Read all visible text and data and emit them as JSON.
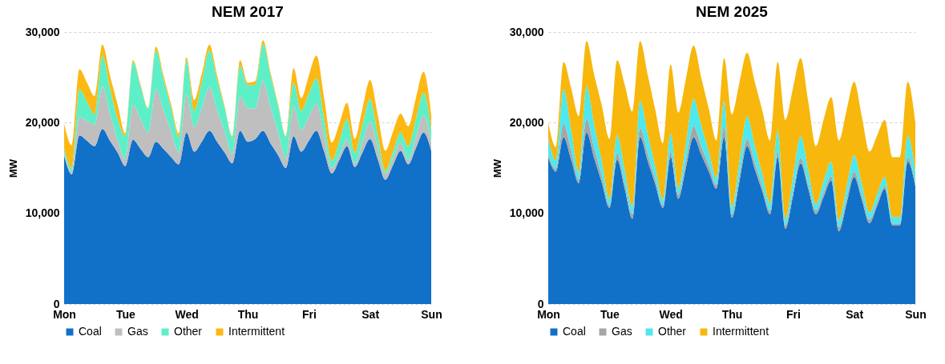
{
  "chart_data": [
    {
      "type": "area",
      "title": "NEM 2017",
      "ylabel": "MW",
      "stacked": true,
      "grid": "y",
      "legend": "bottom",
      "categories": [
        "Mon",
        null,
        null,
        null,
        null,
        null,
        null,
        null,
        "Tue",
        null,
        null,
        null,
        null,
        null,
        null,
        null,
        "Wed",
        null,
        null,
        null,
        null,
        null,
        null,
        null,
        "Thu",
        null,
        null,
        null,
        null,
        null,
        null,
        null,
        "Fri",
        null,
        null,
        null,
        null,
        null,
        null,
        null,
        "Sat",
        null,
        null,
        null,
        null,
        null,
        null,
        null,
        "Sun"
      ],
      "ylim": [
        0,
        30000
      ],
      "yticks": [
        0,
        {
          "value": 10000,
          "label": "10,000"
        },
        {
          "value": 20000,
          "label": "20,000"
        },
        {
          "value": 30000,
          "label": "30,000"
        }
      ],
      "series": [
        {
          "name": "Coal",
          "color": "#1170c8",
          "values": [
            16400,
            14300,
            18600,
            18000,
            17400,
            19300,
            18000,
            16700,
            15200,
            18100,
            17100,
            16200,
            17900,
            17100,
            16200,
            15400,
            18900,
            16800,
            17900,
            19100,
            17900,
            16700,
            15500,
            19100,
            17900,
            18200,
            19100,
            17700,
            16400,
            15000,
            18500,
            16800,
            18000,
            19100,
            16800,
            14400,
            15900,
            17400,
            15100,
            16700,
            18200,
            16000,
            13700,
            15300,
            16900,
            15400,
            17200,
            18900,
            16900
          ]
        },
        {
          "name": "Gas",
          "color": "#bfbfbf",
          "values": [
            300,
            300,
            2000,
            2200,
            2400,
            4700,
            3000,
            1400,
            800,
            3900,
            3300,
            2700,
            5800,
            4300,
            2800,
            1300,
            4300,
            2700,
            3700,
            4800,
            3500,
            2300,
            1000,
            3800,
            3700,
            3400,
            5500,
            4000,
            2500,
            1000,
            3300,
            2400,
            2700,
            3000,
            1800,
            600,
            600,
            700,
            400,
            1100,
            1900,
            1300,
            700,
            800,
            900,
            500,
            1200,
            1900,
            900
          ]
        },
        {
          "name": "Other",
          "color": "#5df0c8",
          "values": [
            500,
            400,
            3100,
            2100,
            1100,
            3400,
            2800,
            2300,
            2500,
            4700,
            3600,
            2600,
            4300,
            3400,
            2600,
            1700,
            3700,
            1800,
            2900,
            4100,
            3400,
            2600,
            1900,
            3400,
            2500,
            2600,
            4100,
            3500,
            2900,
            2400,
            2600,
            2100,
            2500,
            2800,
            1800,
            800,
            1500,
            2300,
            1200,
            1900,
            2500,
            1400,
            300,
            700,
            1100,
            1500,
            2000,
            2500,
            1400
          ]
        },
        {
          "name": "Intermittent",
          "color": "#fdb813",
          "values": [
            2700,
            2500,
            2200,
            2100,
            2000,
            1200,
            1400,
            1600,
            300,
            200,
            200,
            100,
            400,
            400,
            400,
            400,
            300,
            1200,
            900,
            600,
            400,
            200,
            100,
            600,
            300,
            400,
            400,
            300,
            200,
            100,
            1600,
            1400,
            2000,
            2500,
            2300,
            2000,
            1900,
            1800,
            1500,
            1800,
            2100,
            2200,
            2200,
            2200,
            2100,
            2200,
            2300,
            2300,
            1600
          ]
        }
      ]
    },
    {
      "type": "area",
      "title": "NEM 2025",
      "ylabel": "MW",
      "stacked": true,
      "grid": "y",
      "legend": "bottom",
      "categories": [
        "Mon",
        null,
        null,
        null,
        null,
        null,
        null,
        null,
        "Tue",
        null,
        null,
        null,
        null,
        null,
        null,
        null,
        "Wed",
        null,
        null,
        null,
        null,
        null,
        null,
        null,
        "Thu",
        null,
        null,
        null,
        null,
        null,
        null,
        null,
        "Fri",
        null,
        null,
        null,
        null,
        null,
        null,
        null,
        "Sat",
        null,
        null,
        null,
        null,
        null,
        null,
        null,
        "Sun"
      ],
      "ylim": [
        0,
        30000
      ],
      "yticks": [
        0,
        {
          "value": 10000,
          "label": "10,000"
        },
        {
          "value": 20000,
          "label": "20,000"
        },
        {
          "value": 30000,
          "label": "30,000"
        }
      ],
      "series": [
        {
          "name": "Coal",
          "color": "#1170c8",
          "values": [
            16200,
            14600,
            18400,
            15900,
            13300,
            18900,
            16100,
            13400,
            10600,
            15900,
            12700,
            9400,
            18400,
            15800,
            13200,
            10600,
            16200,
            11600,
            15000,
            18400,
            16500,
            14600,
            12700,
            18400,
            9500,
            13500,
            17400,
            14900,
            12400,
            9900,
            16200,
            8300,
            11900,
            15500,
            12700,
            9900,
            11800,
            13600,
            8000,
            11000,
            14000,
            11500,
            8900,
            10800,
            12700,
            8700,
            8700,
            15700,
            13000
          ]
        },
        {
          "name": "Gas",
          "color": "#a6a6a6",
          "values": [
            300,
            300,
            1500,
            1000,
            400,
            1500,
            1100,
            700,
            300,
            700,
            600,
            500,
            1000,
            800,
            500,
            300,
            600,
            500,
            800,
            1200,
            900,
            700,
            400,
            1200,
            400,
            600,
            800,
            700,
            500,
            400,
            600,
            400,
            500,
            600,
            500,
            400,
            500,
            500,
            500,
            600,
            600,
            500,
            400,
            400,
            300,
            200,
            200,
            500,
            300
          ]
        },
        {
          "name": "Other",
          "color": "#4fe8ee",
          "values": [
            1800,
            900,
            3800,
            2300,
            800,
            3600,
            2600,
            1700,
            700,
            2000,
            1500,
            900,
            3000,
            2200,
            1400,
            600,
            2000,
            700,
            1900,
            3000,
            2300,
            1500,
            800,
            2800,
            800,
            1700,
            2500,
            1900,
            1400,
            800,
            2300,
            700,
            1600,
            2400,
            1600,
            700,
            1200,
            1600,
            800,
            1300,
            1800,
            1300,
            800,
            900,
            1000,
            700,
            700,
            2400,
            1200
          ]
        },
        {
          "name": "Intermittent",
          "color": "#f7b70c",
          "values": [
            1700,
            1500,
            3000,
            4600,
            6200,
            5000,
            5500,
            6100,
            6600,
            8300,
            9400,
            10400,
            6600,
            6500,
            6300,
            6200,
            7600,
            8300,
            7100,
            5900,
            5300,
            4700,
            4100,
            4700,
            10200,
            8600,
            7000,
            7000,
            7000,
            6900,
            7600,
            10900,
            9800,
            8600,
            7500,
            6400,
            6800,
            7100,
            8700,
            8400,
            8100,
            7400,
            6700,
            6500,
            6300,
            6600,
            6600,
            5900,
            5500
          ]
        }
      ]
    }
  ]
}
